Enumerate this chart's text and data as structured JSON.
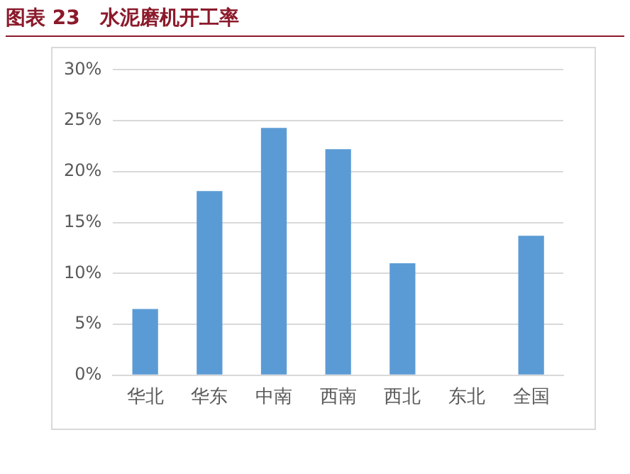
{
  "chart_data": {
    "type": "bar",
    "title": "图表 23　水泥磨机开工率",
    "categories": [
      "华北",
      "华东",
      "中南",
      "西南",
      "西北",
      "东北",
      "全国"
    ],
    "values": [
      6.5,
      18.1,
      24.3,
      22.2,
      11.0,
      0,
      13.7
    ],
    "color": "#5b9bd5",
    "ylim": [
      0,
      30
    ],
    "yticks": [
      {
        "value": 0,
        "label": "0%"
      },
      {
        "value": 5,
        "label": "5%"
      },
      {
        "value": 10,
        "label": "10%"
      },
      {
        "value": 15,
        "label": "15%"
      },
      {
        "value": 20,
        "label": "20%"
      },
      {
        "value": 25,
        "label": "25%"
      },
      {
        "value": 30,
        "label": "30%"
      }
    ],
    "grid": "y"
  }
}
